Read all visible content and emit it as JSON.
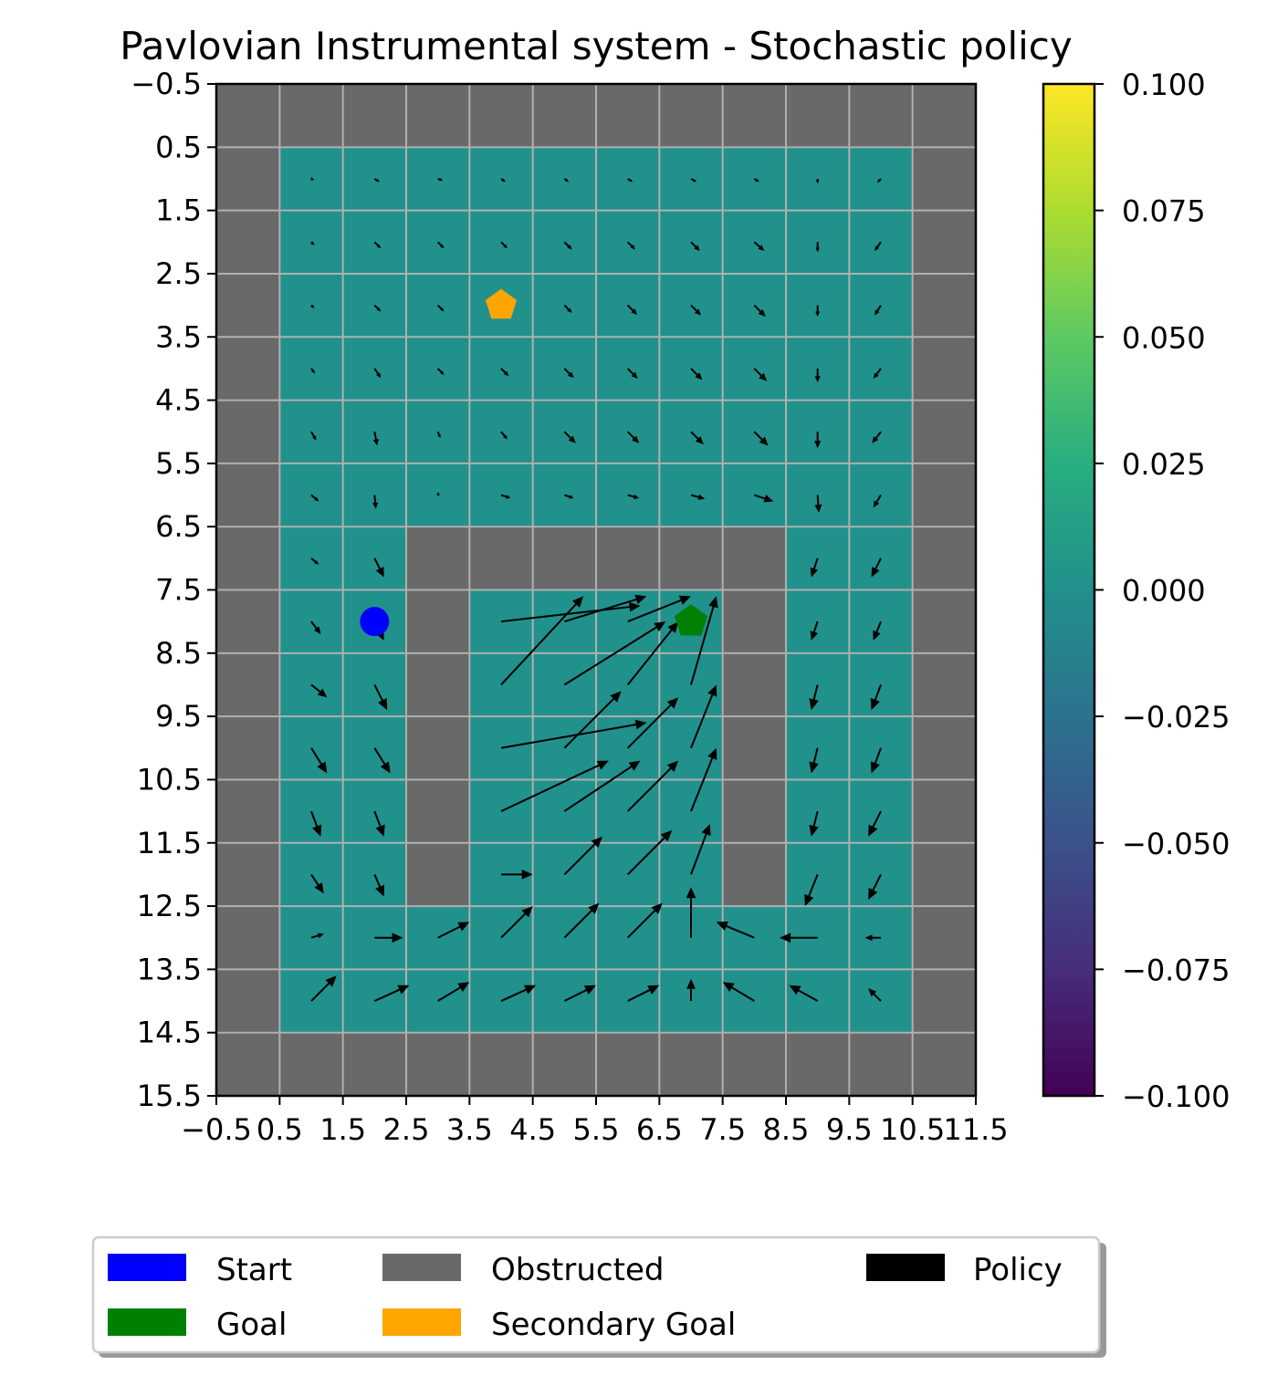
{
  "chart_data": {
    "type": "heatmap",
    "title": "Pavlovian Instrumental system - Stochastic policy",
    "xlabel": "",
    "ylabel": "",
    "grid": true,
    "x_ticks": [
      "−0.5",
      "0.5",
      "1.5",
      "2.5",
      "3.5",
      "4.5",
      "5.5",
      "6.5",
      "7.5",
      "8.5",
      "9.5",
      "10.5",
      "11.5"
    ],
    "y_ticks": [
      "−0.5",
      "0.5",
      "1.5",
      "2.5",
      "3.5",
      "4.5",
      "5.5",
      "6.5",
      "7.5",
      "8.5",
      "9.5",
      "10.5",
      "11.5",
      "12.5",
      "13.5",
      "14.5",
      "15.5"
    ],
    "xlim": [
      -0.5,
      11.5
    ],
    "ylim": [
      15.5,
      -0.5
    ],
    "grid_size": {
      "cols": 12,
      "rows": 16
    },
    "obstructed_color": "#696969",
    "grid_line_color": "#b0b0b0",
    "cell_value": 0.0,
    "cell_color": "#21918c",
    "obstructed_cells": [
      [
        0,
        0
      ],
      [
        1,
        0
      ],
      [
        2,
        0
      ],
      [
        3,
        0
      ],
      [
        4,
        0
      ],
      [
        5,
        0
      ],
      [
        6,
        0
      ],
      [
        7,
        0
      ],
      [
        8,
        0
      ],
      [
        9,
        0
      ],
      [
        10,
        0
      ],
      [
        11,
        0
      ],
      [
        0,
        1
      ],
      [
        11,
        1
      ],
      [
        0,
        2
      ],
      [
        11,
        2
      ],
      [
        0,
        3
      ],
      [
        11,
        3
      ],
      [
        0,
        4
      ],
      [
        11,
        4
      ],
      [
        0,
        5
      ],
      [
        11,
        5
      ],
      [
        0,
        6
      ],
      [
        11,
        6
      ],
      [
        0,
        7
      ],
      [
        3,
        7
      ],
      [
        4,
        7
      ],
      [
        5,
        7
      ],
      [
        6,
        7
      ],
      [
        7,
        7
      ],
      [
        8,
        7
      ],
      [
        11,
        7
      ],
      [
        0,
        8
      ],
      [
        3,
        8
      ],
      [
        8,
        8
      ],
      [
        11,
        8
      ],
      [
        0,
        9
      ],
      [
        3,
        9
      ],
      [
        8,
        9
      ],
      [
        11,
        9
      ],
      [
        0,
        10
      ],
      [
        3,
        10
      ],
      [
        8,
        10
      ],
      [
        11,
        10
      ],
      [
        0,
        11
      ],
      [
        3,
        11
      ],
      [
        8,
        11
      ],
      [
        11,
        11
      ],
      [
        0,
        12
      ],
      [
        3,
        12
      ],
      [
        8,
        12
      ],
      [
        11,
        12
      ],
      [
        0,
        13
      ],
      [
        11,
        13
      ],
      [
        0,
        14
      ],
      [
        11,
        14
      ],
      [
        0,
        15
      ],
      [
        1,
        15
      ],
      [
        2,
        15
      ],
      [
        3,
        15
      ],
      [
        4,
        15
      ],
      [
        5,
        15
      ],
      [
        6,
        15
      ],
      [
        7,
        15
      ],
      [
        8,
        15
      ],
      [
        9,
        15
      ],
      [
        10,
        15
      ],
      [
        11,
        15
      ]
    ],
    "start": {
      "x": 2,
      "y": 8,
      "color": "#0000ff"
    },
    "goal": {
      "x": 7,
      "y": 8,
      "color": "#008000"
    },
    "secondary_goal": {
      "x": 4,
      "y": 3,
      "color": "#ffa500"
    },
    "policy_color": "#000000",
    "policy": [
      {
        "x": 1,
        "y": 1,
        "u": 0.05,
        "v": -0.02
      },
      {
        "x": 2,
        "y": 1,
        "u": 0.08,
        "v": -0.05
      },
      {
        "x": 3,
        "y": 1,
        "u": 0.08,
        "v": -0.03
      },
      {
        "x": 4,
        "y": 1,
        "u": 0.07,
        "v": -0.05
      },
      {
        "x": 5,
        "y": 1,
        "u": 0.07,
        "v": -0.05
      },
      {
        "x": 6,
        "y": 1,
        "u": 0.08,
        "v": -0.05
      },
      {
        "x": 7,
        "y": 1,
        "u": 0.09,
        "v": -0.05
      },
      {
        "x": 8,
        "y": 1,
        "u": 0.08,
        "v": -0.05
      },
      {
        "x": 9,
        "y": 1,
        "u": 0.0,
        "v": -0.08
      },
      {
        "x": 10,
        "y": 1,
        "u": -0.06,
        "v": -0.06
      },
      {
        "x": 1,
        "y": 2,
        "u": 0.05,
        "v": -0.05
      },
      {
        "x": 2,
        "y": 2,
        "u": 0.1,
        "v": -0.1
      },
      {
        "x": 3,
        "y": 2,
        "u": 0.1,
        "v": -0.1
      },
      {
        "x": 4,
        "y": 2,
        "u": 0.1,
        "v": -0.1
      },
      {
        "x": 5,
        "y": 2,
        "u": 0.12,
        "v": -0.12
      },
      {
        "x": 6,
        "y": 2,
        "u": 0.12,
        "v": -0.12
      },
      {
        "x": 7,
        "y": 2,
        "u": 0.14,
        "v": -0.14
      },
      {
        "x": 8,
        "y": 2,
        "u": 0.16,
        "v": -0.14
      },
      {
        "x": 9,
        "y": 2,
        "u": 0.0,
        "v": -0.16
      },
      {
        "x": 10,
        "y": 2,
        "u": -0.1,
        "v": -0.14
      },
      {
        "x": 1,
        "y": 3,
        "u": 0.05,
        "v": -0.05
      },
      {
        "x": 2,
        "y": 3,
        "u": 0.1,
        "v": -0.1
      },
      {
        "x": 3,
        "y": 3,
        "u": 0.1,
        "v": -0.1
      },
      {
        "x": 4,
        "y": 3,
        "u": 0.1,
        "v": -0.1
      },
      {
        "x": 5,
        "y": 3,
        "u": 0.12,
        "v": -0.12
      },
      {
        "x": 6,
        "y": 3,
        "u": 0.15,
        "v": -0.15
      },
      {
        "x": 7,
        "y": 3,
        "u": 0.16,
        "v": -0.16
      },
      {
        "x": 8,
        "y": 3,
        "u": 0.18,
        "v": -0.18
      },
      {
        "x": 9,
        "y": 3,
        "u": 0.0,
        "v": -0.18
      },
      {
        "x": 10,
        "y": 3,
        "u": -0.1,
        "v": -0.16
      },
      {
        "x": 1,
        "y": 4,
        "u": 0.06,
        "v": -0.08
      },
      {
        "x": 2,
        "y": 4,
        "u": 0.1,
        "v": -0.15
      },
      {
        "x": 3,
        "y": 4,
        "u": 0.1,
        "v": -0.1
      },
      {
        "x": 4,
        "y": 4,
        "u": 0.12,
        "v": -0.12
      },
      {
        "x": 5,
        "y": 4,
        "u": 0.15,
        "v": -0.15
      },
      {
        "x": 6,
        "y": 4,
        "u": 0.16,
        "v": -0.16
      },
      {
        "x": 7,
        "y": 4,
        "u": 0.18,
        "v": -0.18
      },
      {
        "x": 8,
        "y": 4,
        "u": 0.2,
        "v": -0.2
      },
      {
        "x": 9,
        "y": 4,
        "u": 0.0,
        "v": -0.22
      },
      {
        "x": 10,
        "y": 4,
        "u": -0.12,
        "v": -0.16
      },
      {
        "x": 1,
        "y": 5,
        "u": 0.08,
        "v": -0.14
      },
      {
        "x": 2,
        "y": 5,
        "u": 0.04,
        "v": -0.22
      },
      {
        "x": 3,
        "y": 5,
        "u": 0.04,
        "v": -0.1
      },
      {
        "x": 4,
        "y": 5,
        "u": 0.1,
        "v": -0.12
      },
      {
        "x": 5,
        "y": 5,
        "u": 0.18,
        "v": -0.18
      },
      {
        "x": 6,
        "y": 5,
        "u": 0.18,
        "v": -0.18
      },
      {
        "x": 7,
        "y": 5,
        "u": 0.2,
        "v": -0.2
      },
      {
        "x": 8,
        "y": 5,
        "u": 0.22,
        "v": -0.22
      },
      {
        "x": 9,
        "y": 5,
        "u": 0.0,
        "v": -0.26
      },
      {
        "x": 10,
        "y": 5,
        "u": -0.14,
        "v": -0.18
      },
      {
        "x": 1,
        "y": 6,
        "u": 0.12,
        "v": -0.1
      },
      {
        "x": 2,
        "y": 6,
        "u": 0.02,
        "v": -0.22
      },
      {
        "x": 3,
        "y": 6,
        "u": 0.02,
        "v": 0.05
      },
      {
        "x": 4,
        "y": 6,
        "u": 0.15,
        "v": -0.05
      },
      {
        "x": 5,
        "y": 6,
        "u": 0.15,
        "v": -0.05
      },
      {
        "x": 6,
        "y": 6,
        "u": 0.18,
        "v": -0.05
      },
      {
        "x": 7,
        "y": 6,
        "u": 0.22,
        "v": -0.06
      },
      {
        "x": 8,
        "y": 6,
        "u": 0.3,
        "v": -0.1
      },
      {
        "x": 9,
        "y": 6,
        "u": 0.02,
        "v": -0.28
      },
      {
        "x": 10,
        "y": 6,
        "u": -0.12,
        "v": -0.2
      },
      {
        "x": 1,
        "y": 7,
        "u": 0.12,
        "v": -0.1
      },
      {
        "x": 2,
        "y": 7,
        "u": 0.15,
        "v": -0.3
      },
      {
        "x": 9,
        "y": 7,
        "u": -0.1,
        "v": -0.3
      },
      {
        "x": 10,
        "y": 7,
        "u": -0.15,
        "v": -0.3
      },
      {
        "x": 1,
        "y": 8,
        "u": 0.15,
        "v": -0.2
      },
      {
        "x": 2,
        "y": 8,
        "u": 0.15,
        "v": -0.3
      },
      {
        "x": 4,
        "y": 8,
        "u": 2.2,
        "v": 0.25
      },
      {
        "x": 5,
        "y": 8,
        "u": 1.3,
        "v": 0.4
      },
      {
        "x": 6,
        "y": 8,
        "u": 1.0,
        "v": 0.4
      },
      {
        "x": 9,
        "y": 8,
        "u": -0.1,
        "v": -0.3
      },
      {
        "x": 10,
        "y": 8,
        "u": -0.12,
        "v": -0.3
      },
      {
        "x": 1,
        "y": 9,
        "u": 0.25,
        "v": -0.2
      },
      {
        "x": 2,
        "y": 9,
        "u": 0.2,
        "v": -0.4
      },
      {
        "x": 4,
        "y": 9,
        "u": 1.3,
        "v": 1.4
      },
      {
        "x": 5,
        "y": 9,
        "u": 1.6,
        "v": 1.0
      },
      {
        "x": 6,
        "y": 9,
        "u": 0.8,
        "v": 1.0
      },
      {
        "x": 7,
        "y": 9,
        "u": 0.4,
        "v": 1.4
      },
      {
        "x": 9,
        "y": 9,
        "u": -0.1,
        "v": -0.4
      },
      {
        "x": 10,
        "y": 9,
        "u": -0.15,
        "v": -0.4
      },
      {
        "x": 1,
        "y": 10,
        "u": 0.25,
        "v": -0.4
      },
      {
        "x": 2,
        "y": 10,
        "u": 0.25,
        "v": -0.4
      },
      {
        "x": 4,
        "y": 10,
        "u": 2.3,
        "v": 0.4
      },
      {
        "x": 5,
        "y": 10,
        "u": 0.9,
        "v": 0.9
      },
      {
        "x": 6,
        "y": 10,
        "u": 0.8,
        "v": 0.8
      },
      {
        "x": 7,
        "y": 10,
        "u": 0.4,
        "v": 1.0
      },
      {
        "x": 9,
        "y": 10,
        "u": -0.1,
        "v": -0.4
      },
      {
        "x": 10,
        "y": 10,
        "u": -0.15,
        "v": -0.4
      },
      {
        "x": 1,
        "y": 11,
        "u": 0.15,
        "v": -0.4
      },
      {
        "x": 2,
        "y": 11,
        "u": 0.15,
        "v": -0.4
      },
      {
        "x": 4,
        "y": 11,
        "u": 1.7,
        "v": 0.8
      },
      {
        "x": 5,
        "y": 11,
        "u": 1.2,
        "v": 0.8
      },
      {
        "x": 6,
        "y": 11,
        "u": 0.8,
        "v": 0.8
      },
      {
        "x": 7,
        "y": 11,
        "u": 0.4,
        "v": 1.0
      },
      {
        "x": 9,
        "y": 11,
        "u": -0.1,
        "v": -0.4
      },
      {
        "x": 10,
        "y": 11,
        "u": -0.2,
        "v": -0.4
      },
      {
        "x": 1,
        "y": 12,
        "u": 0.2,
        "v": -0.3
      },
      {
        "x": 2,
        "y": 12,
        "u": 0.15,
        "v": -0.35
      },
      {
        "x": 4,
        "y": 12,
        "u": 0.5,
        "v": 0.0
      },
      {
        "x": 5,
        "y": 12,
        "u": 0.6,
        "v": 0.6
      },
      {
        "x": 6,
        "y": 12,
        "u": 0.7,
        "v": 0.7
      },
      {
        "x": 7,
        "y": 12,
        "u": 0.3,
        "v": 0.8
      },
      {
        "x": 9,
        "y": 12,
        "u": -0.2,
        "v": -0.5
      },
      {
        "x": 10,
        "y": 12,
        "u": -0.2,
        "v": -0.4
      },
      {
        "x": 1,
        "y": 13,
        "u": 0.2,
        "v": 0.06
      },
      {
        "x": 2,
        "y": 13,
        "u": 0.45,
        "v": 0.0
      },
      {
        "x": 3,
        "y": 13,
        "u": 0.5,
        "v": 0.25
      },
      {
        "x": 4,
        "y": 13,
        "u": 0.5,
        "v": 0.5
      },
      {
        "x": 5,
        "y": 13,
        "u": 0.55,
        "v": 0.55
      },
      {
        "x": 6,
        "y": 13,
        "u": 0.55,
        "v": 0.55
      },
      {
        "x": 7,
        "y": 13,
        "u": 0.0,
        "v": 0.8
      },
      {
        "x": 8,
        "y": 13,
        "u": -0.6,
        "v": 0.25
      },
      {
        "x": 9,
        "y": 13,
        "u": -0.6,
        "v": 0.0
      },
      {
        "x": 10,
        "y": 13,
        "u": -0.25,
        "v": 0.0
      },
      {
        "x": 1,
        "y": 14,
        "u": 0.4,
        "v": 0.4
      },
      {
        "x": 2,
        "y": 14,
        "u": 0.55,
        "v": 0.25
      },
      {
        "x": 3,
        "y": 14,
        "u": 0.5,
        "v": 0.3
      },
      {
        "x": 4,
        "y": 14,
        "u": 0.55,
        "v": 0.25
      },
      {
        "x": 5,
        "y": 14,
        "u": 0.5,
        "v": 0.25
      },
      {
        "x": 6,
        "y": 14,
        "u": 0.5,
        "v": 0.25
      },
      {
        "x": 7,
        "y": 14,
        "u": 0.0,
        "v": 0.35
      },
      {
        "x": 8,
        "y": 14,
        "u": -0.5,
        "v": 0.3
      },
      {
        "x": 9,
        "y": 14,
        "u": -0.45,
        "v": 0.25
      },
      {
        "x": 10,
        "y": 14,
        "u": -0.2,
        "v": 0.2
      }
    ],
    "colorbar": {
      "colormap": "viridis",
      "min": -0.1,
      "max": 0.1,
      "ticks": [
        "0.100",
        "0.075",
        "0.050",
        "0.025",
        "0.000",
        "−0.025",
        "−0.050",
        "−0.075",
        "−0.100"
      ],
      "tick_values": [
        0.1,
        0.075,
        0.05,
        0.025,
        0.0,
        -0.025,
        -0.05,
        -0.075,
        -0.1
      ],
      "stops": [
        "#440154",
        "#472d7b",
        "#3b528b",
        "#2c728e",
        "#21918c",
        "#28ae80",
        "#5ec962",
        "#addc30",
        "#fde725"
      ]
    },
    "legend": {
      "placement": "bottom",
      "items": [
        {
          "label": "Start",
          "color": "#0000ff"
        },
        {
          "label": "Goal",
          "color": "#008000"
        },
        {
          "label": "Obstructed",
          "color": "#696969"
        },
        {
          "label": "Secondary Goal",
          "color": "#ffa500"
        },
        {
          "label": "Policy",
          "color": "#000000"
        }
      ]
    }
  }
}
